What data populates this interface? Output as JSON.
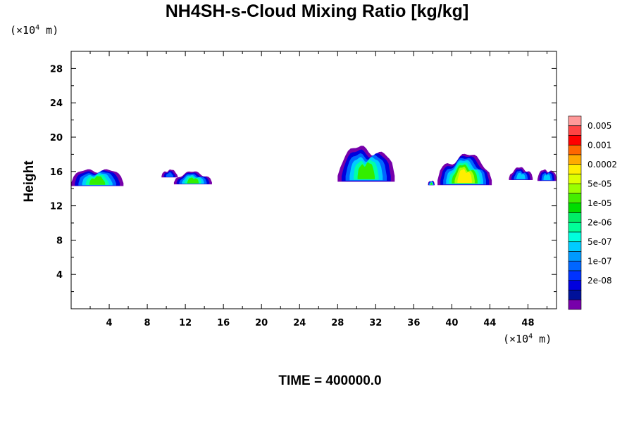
{
  "chart_data": {
    "type": "heatmap",
    "title": "NH4SH-s-Cloud Mixing Ratio [kg/kg]",
    "xlabel": "",
    "ylabel": "Height",
    "x_unit_prefix": "(×10",
    "x_unit_exp": "4",
    "x_unit_suffix": " m)",
    "y_unit_prefix": "(×10",
    "y_unit_exp": "4",
    "y_unit_suffix": " m)",
    "xlim": [
      0,
      51
    ],
    "ylim": [
      0,
      30
    ],
    "x_ticks": [
      "4",
      "8",
      "12",
      "16",
      "20",
      "24",
      "28",
      "32",
      "36",
      "40",
      "44",
      "48"
    ],
    "y_ticks": [
      "4",
      "8",
      "12",
      "16",
      "20",
      "24",
      "28"
    ],
    "colorbar": {
      "levels": [
        "0.005",
        "0.001",
        "0.0002",
        "5e-05",
        "1e-05",
        "2e-06",
        "5e-07",
        "1e-07",
        "2e-08"
      ],
      "colors": [
        "#ff9999",
        "#ff4444",
        "#ff0000",
        "#ff6600",
        "#ffaa00",
        "#ffee00",
        "#ddff00",
        "#99ff00",
        "#44ee00",
        "#00dd00",
        "#00ee66",
        "#00ff99",
        "#00ffdd",
        "#00ccff",
        "#0099ff",
        "#0066ff",
        "#0033ff",
        "#0000dd",
        "#001199",
        "#7700aa"
      ]
    },
    "footer": "TIME = 400000.0",
    "clouds": [
      {
        "x0": 0.0,
        "x1": 5.5,
        "ybot": 14.3,
        "ytop": 16.6,
        "peak": "green"
      },
      {
        "x0": 9.5,
        "x1": 11.2,
        "ybot": 15.3,
        "ytop": 16.3,
        "peak": "blue"
      },
      {
        "x0": 10.8,
        "x1": 14.8,
        "ybot": 14.5,
        "ytop": 16.1,
        "peak": "green"
      },
      {
        "x0": 28.0,
        "x1": 34.0,
        "ybot": 14.8,
        "ytop": 19.4,
        "peak": "green"
      },
      {
        "x0": 37.5,
        "x1": 38.2,
        "ybot": 14.4,
        "ytop": 15.0,
        "peak": "green"
      },
      {
        "x0": 38.5,
        "x1": 44.2,
        "ybot": 14.4,
        "ytop": 18.3,
        "peak": "yellow"
      },
      {
        "x0": 46.0,
        "x1": 48.5,
        "ybot": 15.0,
        "ytop": 16.6,
        "peak": "cyan"
      },
      {
        "x0": 49.0,
        "x1": 51.0,
        "ybot": 14.9,
        "ytop": 16.4,
        "peak": "cyan"
      }
    ]
  }
}
